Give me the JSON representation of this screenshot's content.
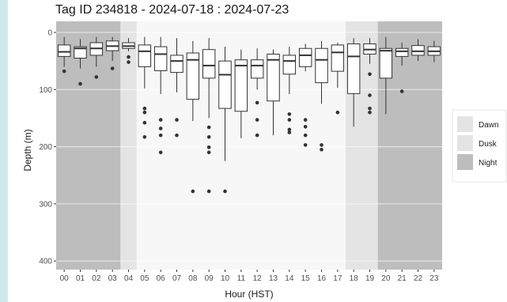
{
  "chart_data": {
    "type": "box",
    "title": "Tag ID 234818 - 2024-07-18 : 2024-07-23",
    "xlabel": "Hour (HST)",
    "ylabel": "Depth (m)",
    "ylim": [
      0,
      415
    ],
    "y_reversed": true,
    "y_ticks": [
      0,
      100,
      200,
      300,
      400
    ],
    "categories": [
      "00",
      "01",
      "02",
      "03",
      "04",
      "05",
      "06",
      "07",
      "08",
      "09",
      "10",
      "11",
      "12",
      "13",
      "14",
      "15",
      "16",
      "17",
      "18",
      "19",
      "20",
      "21",
      "22",
      "23"
    ],
    "periods": [
      {
        "label": "Night",
        "from": "00",
        "to": "03",
        "color": "#bdbdbd"
      },
      {
        "label": "Dawn",
        "from": "04",
        "to": "04",
        "color": "#e4e4e4"
      },
      {
        "label": "Dusk",
        "from": "18",
        "to": "19",
        "color": "#e4e4e4"
      },
      {
        "label": "Night",
        "from": "20",
        "to": "23",
        "color": "#bdbdbd"
      }
    ],
    "legend": {
      "position": "right",
      "entries": [
        {
          "label": "Dawn",
          "color": "#e4e4e4"
        },
        {
          "label": "Dusk",
          "color": "#e4e4e4"
        },
        {
          "label": "Night",
          "color": "#bdbdbd"
        }
      ]
    },
    "boxes": [
      {
        "hour": "00",
        "wlo": 8,
        "q1": 22,
        "median": 34,
        "q3": 42,
        "whi": 60,
        "outliers": [
          68
        ]
      },
      {
        "hour": "01",
        "wlo": 12,
        "q1": 25,
        "median": 28,
        "q3": 45,
        "whi": 63,
        "outliers": [
          90
        ]
      },
      {
        "hour": "02",
        "wlo": 8,
        "q1": 18,
        "median": 28,
        "q3": 40,
        "whi": 60,
        "outliers": [
          78
        ]
      },
      {
        "hour": "03",
        "wlo": 8,
        "q1": 15,
        "median": 24,
        "q3": 32,
        "whi": 50,
        "outliers": [
          63
        ]
      },
      {
        "hour": "04",
        "wlo": 10,
        "q1": 18,
        "median": 24,
        "q3": 28,
        "whi": 33,
        "outliers": [
          43,
          52
        ]
      },
      {
        "hour": "05",
        "wlo": 8,
        "q1": 22,
        "median": 33,
        "q3": 60,
        "whi": 98,
        "outliers": [
          133,
          140,
          158,
          183
        ]
      },
      {
        "hour": "06",
        "wlo": 8,
        "q1": 25,
        "median": 38,
        "q3": 67,
        "whi": 108,
        "outliers": [
          153,
          168,
          180,
          210
        ]
      },
      {
        "hour": "07",
        "wlo": 10,
        "q1": 40,
        "median": 50,
        "q3": 70,
        "whi": 105,
        "outliers": [
          153,
          180
        ]
      },
      {
        "hour": "08",
        "wlo": 15,
        "q1": 36,
        "median": 48,
        "q3": 117,
        "whi": 155,
        "outliers": [
          278
        ]
      },
      {
        "hour": "09",
        "wlo": 10,
        "q1": 30,
        "median": 58,
        "q3": 80,
        "whi": 150,
        "outliers": [
          166,
          183,
          201,
          210,
          278
        ]
      },
      {
        "hour": "10",
        "wlo": 25,
        "q1": 50,
        "median": 74,
        "q3": 133,
        "whi": 225,
        "outliers": [
          278
        ]
      },
      {
        "hour": "11",
        "wlo": 30,
        "q1": 48,
        "median": 58,
        "q3": 138,
        "whi": 185,
        "outliers": []
      },
      {
        "hour": "12",
        "wlo": 28,
        "q1": 48,
        "median": 58,
        "q3": 80,
        "whi": 100,
        "outliers": [
          123,
          153,
          180
        ]
      },
      {
        "hour": "13",
        "wlo": 30,
        "q1": 38,
        "median": 48,
        "q3": 120,
        "whi": 180,
        "outliers": []
      },
      {
        "hour": "14",
        "wlo": 25,
        "q1": 40,
        "median": 50,
        "q3": 73,
        "whi": 108,
        "outliers": [
          143,
          153,
          170,
          175
        ]
      },
      {
        "hour": "15",
        "wlo": 20,
        "q1": 28,
        "median": 40,
        "q3": 60,
        "whi": 68,
        "outliers": [
          153,
          165,
          180,
          197
        ]
      },
      {
        "hour": "16",
        "wlo": 15,
        "q1": 28,
        "median": 48,
        "q3": 88,
        "whi": 125,
        "outliers": [
          197,
          205
        ]
      },
      {
        "hour": "17",
        "wlo": 18,
        "q1": 22,
        "median": 35,
        "q3": 68,
        "whi": 97,
        "outliers": [
          140
        ]
      },
      {
        "hour": "18",
        "wlo": 10,
        "q1": 20,
        "median": 42,
        "q3": 107,
        "whi": 165,
        "outliers": []
      },
      {
        "hour": "19",
        "wlo": 10,
        "q1": 20,
        "median": 30,
        "q3": 38,
        "whi": 55,
        "outliers": [
          73,
          110,
          133,
          140
        ]
      },
      {
        "hour": "20",
        "wlo": 8,
        "q1": 28,
        "median": 32,
        "q3": 80,
        "whi": 143,
        "outliers": []
      },
      {
        "hour": "21",
        "wlo": 18,
        "q1": 28,
        "median": 33,
        "q3": 42,
        "whi": 58,
        "outliers": [
          103
        ]
      },
      {
        "hour": "22",
        "wlo": 12,
        "q1": 23,
        "median": 33,
        "q3": 40,
        "whi": 50,
        "outliers": []
      },
      {
        "hour": "23",
        "wlo": 15,
        "q1": 25,
        "median": 33,
        "q3": 40,
        "whi": 52,
        "outliers": []
      }
    ]
  }
}
